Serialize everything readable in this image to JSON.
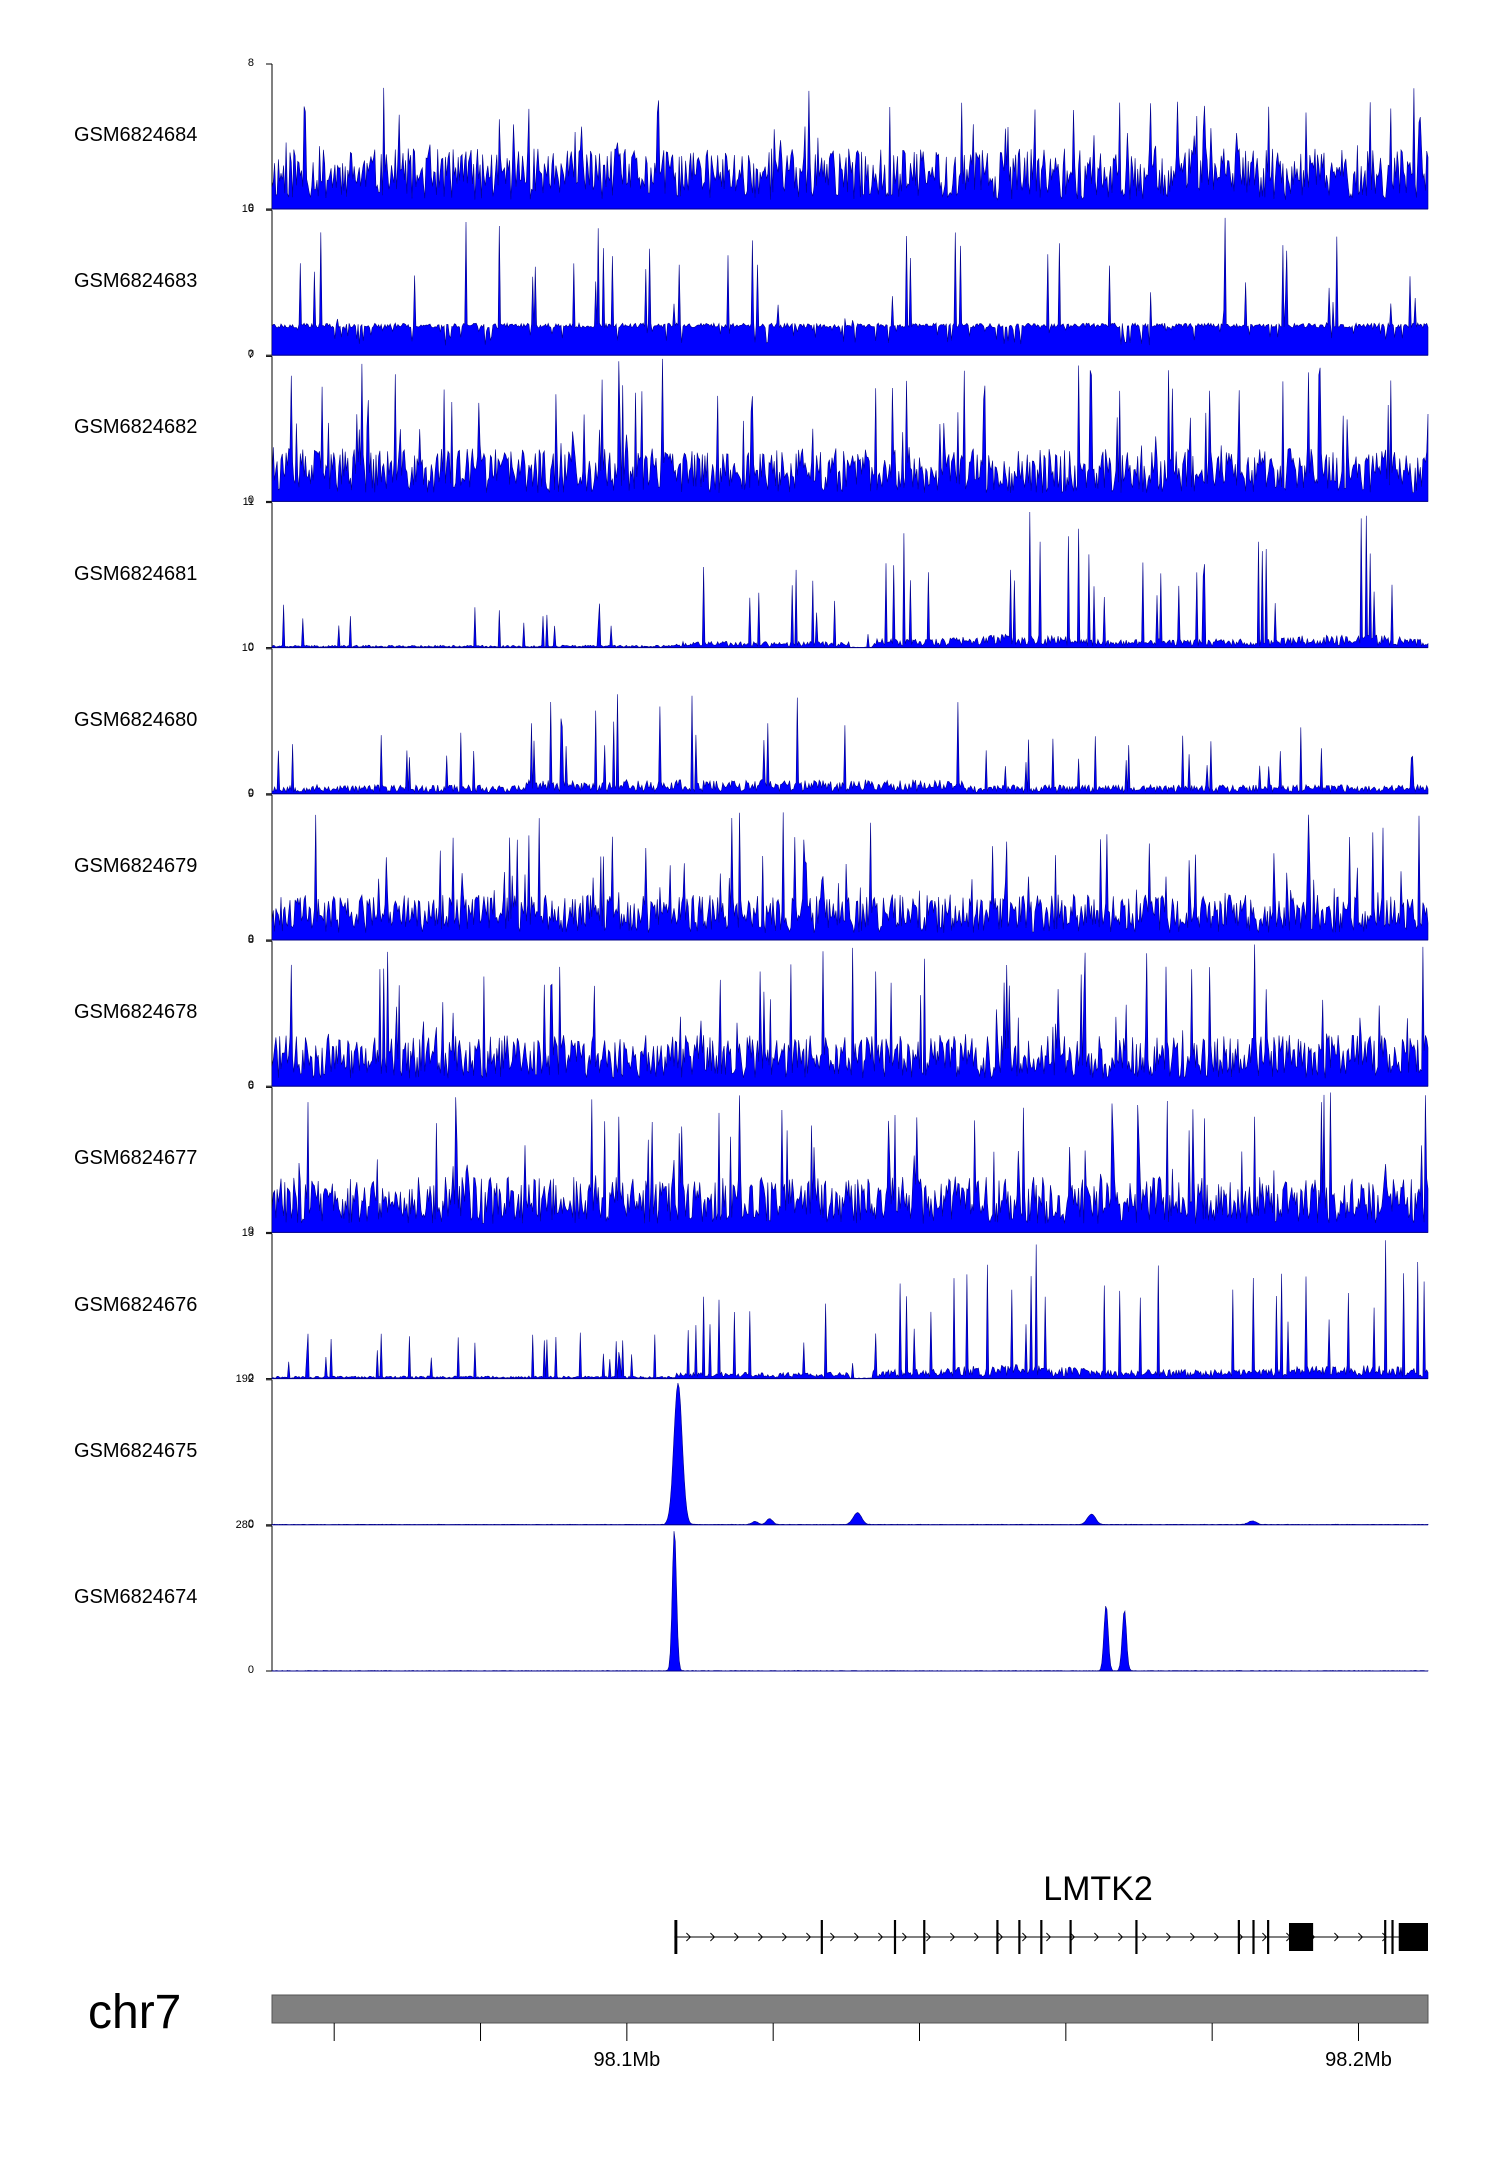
{
  "chart_data": {
    "type": "area",
    "tracks": [
      {
        "name": "GSM6824684",
        "ymax": "8",
        "ymin": "0",
        "pattern": "flat",
        "base": 2.6,
        "spike": 6.8,
        "seed": 11
      },
      {
        "name": "GSM6824683",
        "ymax": "16",
        "ymin": "0",
        "pattern": "sparse",
        "base": 3.6,
        "spike": 15.5,
        "seed": 23
      },
      {
        "name": "GSM6824682",
        "ymax": "7",
        "ymin": "0",
        "pattern": "flat",
        "base": 2.0,
        "spike": 7.0,
        "seed": 37
      },
      {
        "name": "GSM6824681",
        "ymax": "11",
        "ymin": "0",
        "pattern": "rising",
        "base": 0.8,
        "spike": 11.0,
        "seed": 41
      },
      {
        "name": "GSM6824680",
        "ymax": "10",
        "ymin": "0",
        "pattern": "mid",
        "base": 1.4,
        "spike": 10.0,
        "seed": 53
      },
      {
        "name": "GSM6824679",
        "ymax": "9",
        "ymin": "0",
        "pattern": "flat",
        "base": 2.2,
        "spike": 8.2,
        "seed": 61
      },
      {
        "name": "GSM6824678",
        "ymax": "8",
        "ymin": "0",
        "pattern": "flat",
        "base": 2.2,
        "spike": 8.0,
        "seed": 71
      },
      {
        "name": "GSM6824677",
        "ymax": "6",
        "ymin": "0",
        "pattern": "flat",
        "base": 1.8,
        "spike": 6.0,
        "seed": 83
      },
      {
        "name": "GSM6824676",
        "ymax": "13",
        "ymin": "0",
        "pattern": "rising",
        "base": 1.0,
        "spike": 13.0,
        "seed": 97
      },
      {
        "name": "GSM6824675",
        "ymax": "192",
        "ymin": "0",
        "pattern": "peaks",
        "peaks": [
          [
            98.107,
            190,
            0.0008
          ],
          [
            98.1175,
            4,
            0.0006
          ],
          [
            98.1195,
            8,
            0.0006
          ],
          [
            98.1315,
            16,
            0.0008
          ],
          [
            98.1635,
            14,
            0.0008
          ],
          [
            98.1855,
            5,
            0.0008
          ]
        ],
        "seed": 101
      },
      {
        "name": "GSM6824674",
        "ymax": "280",
        "ymin": "0",
        "pattern": "peaks",
        "peaks": [
          [
            98.1065,
            278,
            0.0004
          ],
          [
            98.1655,
            130,
            0.0004
          ],
          [
            98.168,
            120,
            0.0004
          ]
        ],
        "seed": 113
      }
    ],
    "x_range_mb": [
      98.0515,
      98.2095
    ],
    "x_ticks_mb": [
      98.06,
      98.08,
      98.1,
      98.12,
      98.14,
      98.16,
      98.18,
      98.2
    ],
    "x_tick_labels": [
      {
        "value": 98.1,
        "label": "98.1Mb"
      },
      {
        "value": 98.2,
        "label": "98.2Mb"
      }
    ],
    "gene": {
      "name": "LMTK2",
      "strand": "+",
      "start_mb": 98.1065,
      "end_mb": 98.2095,
      "exons_mb": [
        [
          98.1065,
          98.1069
        ],
        [
          98.1265,
          98.1268
        ],
        [
          98.1365,
          98.1368
        ],
        [
          98.1405,
          98.1408
        ],
        [
          98.1505,
          98.1508
        ],
        [
          98.1535,
          98.1538
        ],
        [
          98.1565,
          98.1568
        ],
        [
          98.1605,
          98.1608
        ],
        [
          98.1695,
          98.1698
        ],
        [
          98.1835,
          98.1838
        ],
        [
          98.1855,
          98.1858
        ],
        [
          98.1875,
          98.1878
        ],
        [
          98.1905,
          98.1938
        ],
        [
          98.2035,
          98.2038
        ],
        [
          98.2045,
          98.2048
        ],
        [
          98.2055,
          98.2095
        ]
      ]
    },
    "chromosome": "chr7",
    "fill_color": "#0000ff",
    "outline_color": "#00008b"
  }
}
